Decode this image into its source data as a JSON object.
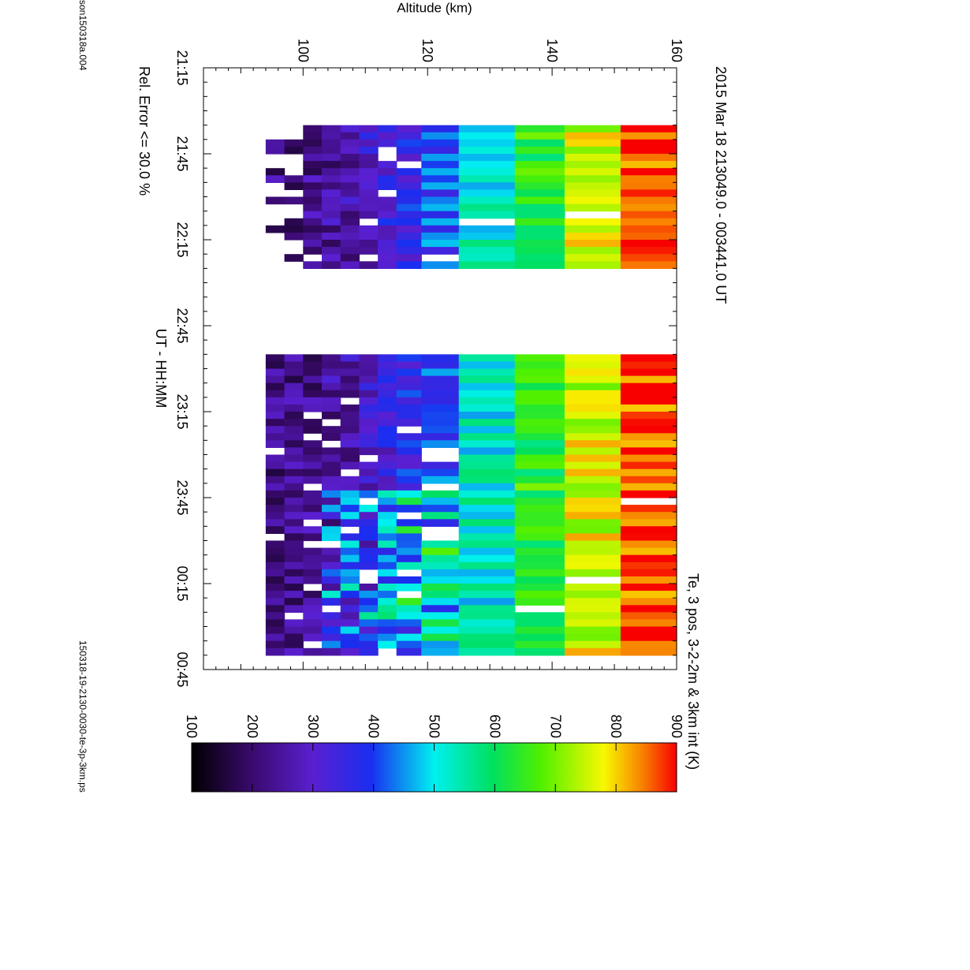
{
  "header": {
    "title": "2015 Mar 18   213049.0 - 003441.0 UT",
    "subtitle": "Te, 3 pos, 3-2-2m & 3km int (K)",
    "filter_note": "Rel. Error <= 30.0 %",
    "left_file": "son150318a.004",
    "right_file": "150318-19-2130-0030-te-3p-3km.ps"
  },
  "axes": {
    "x_label": "UT - HH:MM",
    "y_label": "Altitude (km)",
    "x_ticks": [
      "21:15",
      "21:45",
      "22:15",
      "22:45",
      "23:15",
      "23:45",
      "00:15",
      "00:45"
    ],
    "y_ticks": [
      "100",
      "120",
      "140",
      "160"
    ],
    "colorbar_ticks": [
      "100",
      "200",
      "300",
      "400",
      "500",
      "600",
      "700",
      "800",
      "900"
    ]
  },
  "chart_data": {
    "type": "heatmap",
    "title": "2015 Mar 18   213049.0 - 003441.0 UT",
    "subtitle": "Te, 3 pos, 3-2-2m & 3km int (K)",
    "xlabel": "UT - HH:MM",
    "ylabel": "Altitude (km)",
    "x_unit": "minutes after 21:15 UT",
    "xlim": [
      0,
      210
    ],
    "ylim": [
      84,
      160
    ],
    "zlim": [
      100,
      900
    ],
    "z_unit": "K",
    "colormap": "black-purple-blue-cyan-green-yellow-red",
    "altitude_bins_km": [
      [
        94,
        97
      ],
      [
        97,
        100
      ],
      [
        100,
        103
      ],
      [
        103,
        106
      ],
      [
        106,
        109
      ],
      [
        109,
        112
      ],
      [
        112,
        115
      ],
      [
        115,
        119
      ],
      [
        119,
        125
      ],
      [
        125,
        134
      ],
      [
        134,
        142
      ],
      [
        142,
        151
      ],
      [
        151,
        160
      ]
    ],
    "time_segments_min": [
      [
        20,
        70
      ],
      [
        100,
        205
      ]
    ],
    "representative_profile": {
      "altitude_km": [
        95.5,
        98.5,
        101.5,
        104.5,
        107.5,
        110.5,
        113.5,
        117,
        122,
        129.5,
        138,
        146.5,
        155.5
      ],
      "Te_K": [
        220,
        230,
        235,
        250,
        260,
        300,
        330,
        360,
        410,
        520,
        640,
        760,
        870
      ]
    },
    "gaps_min": [
      [
        70,
        100
      ]
    ]
  }
}
